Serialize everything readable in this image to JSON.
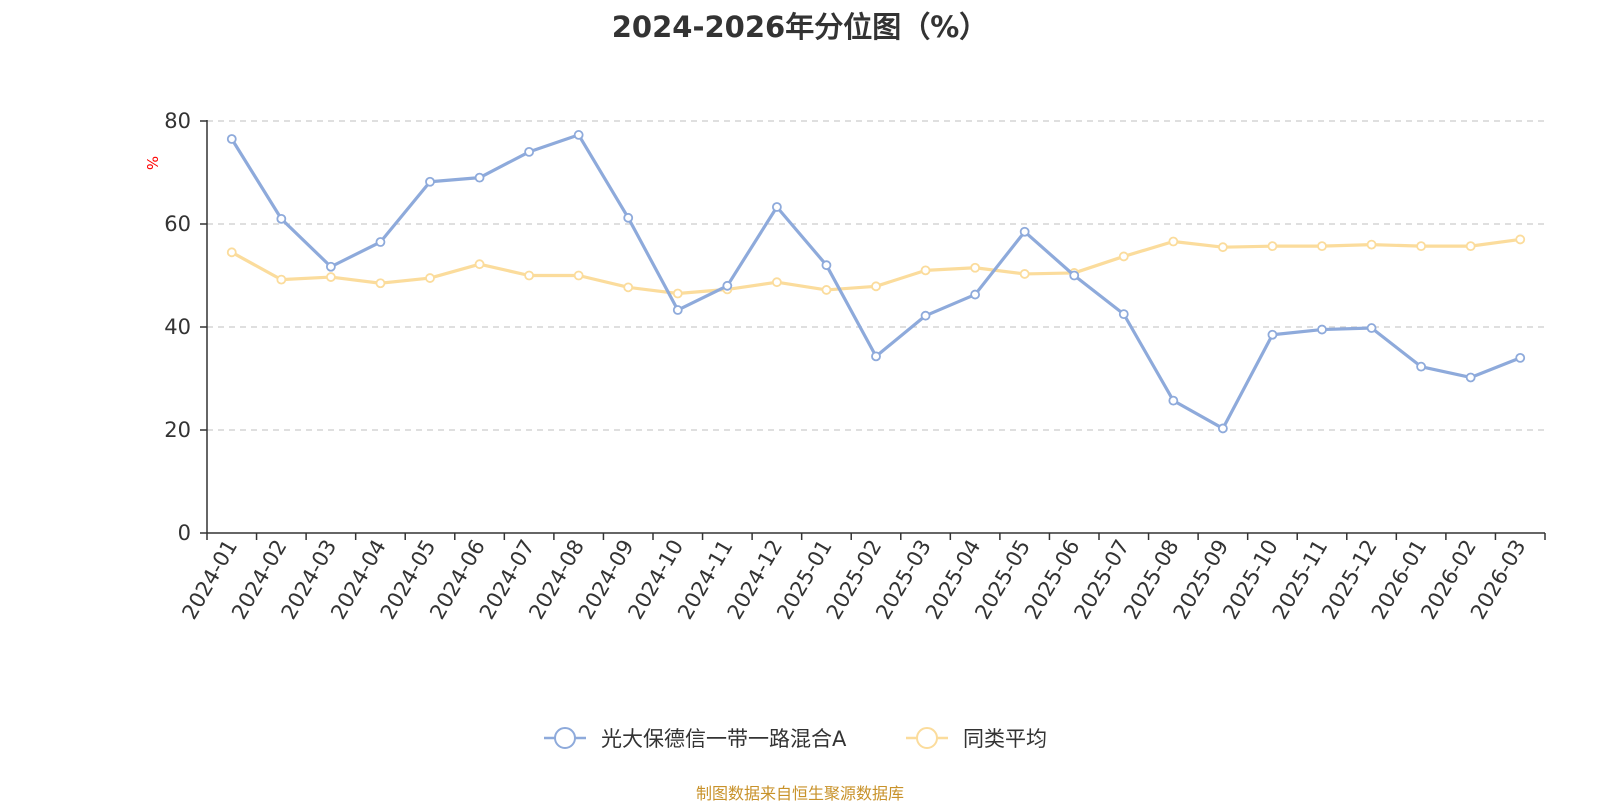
{
  "chart_data": {
    "type": "line",
    "title": "2024-2026年分位图（%）",
    "xlabel": "",
    "ylabel": "%",
    "ylim": [
      0,
      80
    ],
    "yticks": [
      0,
      20,
      40,
      60,
      80
    ],
    "grid": true,
    "legend_position": "bottom-center",
    "categories": [
      "2024-01",
      "2024-02",
      "2024-03",
      "2024-04",
      "2024-05",
      "2024-06",
      "2024-07",
      "2024-08",
      "2024-09",
      "2024-10",
      "2024-11",
      "2024-12",
      "2025-01",
      "2025-02",
      "2025-03",
      "2025-04",
      "2025-05",
      "2025-06",
      "2025-07",
      "2025-08",
      "2025-09",
      "2025-10",
      "2025-11",
      "2025-12",
      "2026-01",
      "2026-02",
      "2026-03"
    ],
    "series": [
      {
        "name": "光大保德信一带一路混合A",
        "color": "#8eaadb",
        "values": [
          76.5,
          61.0,
          51.7,
          56.5,
          68.2,
          69.0,
          74.0,
          77.3,
          61.2,
          43.3,
          48.0,
          63.3,
          52.0,
          34.3,
          42.2,
          46.3,
          58.5,
          50.0,
          42.5,
          25.7,
          20.3,
          38.5,
          39.5,
          39.8,
          32.3,
          30.2,
          34.0
        ]
      },
      {
        "name": "同类平均",
        "color": "#fbdc9c",
        "values": [
          54.5,
          49.2,
          49.7,
          48.5,
          49.5,
          52.2,
          50.0,
          50.0,
          47.7,
          46.5,
          47.3,
          48.7,
          47.2,
          47.9,
          51.0,
          51.5,
          50.3,
          50.5,
          53.7,
          56.6,
          55.5,
          55.7,
          55.7,
          56.0,
          55.7,
          55.7,
          57.0
        ]
      }
    ]
  },
  "footer": {
    "source": "制图数据来自恒生聚源数据库"
  }
}
